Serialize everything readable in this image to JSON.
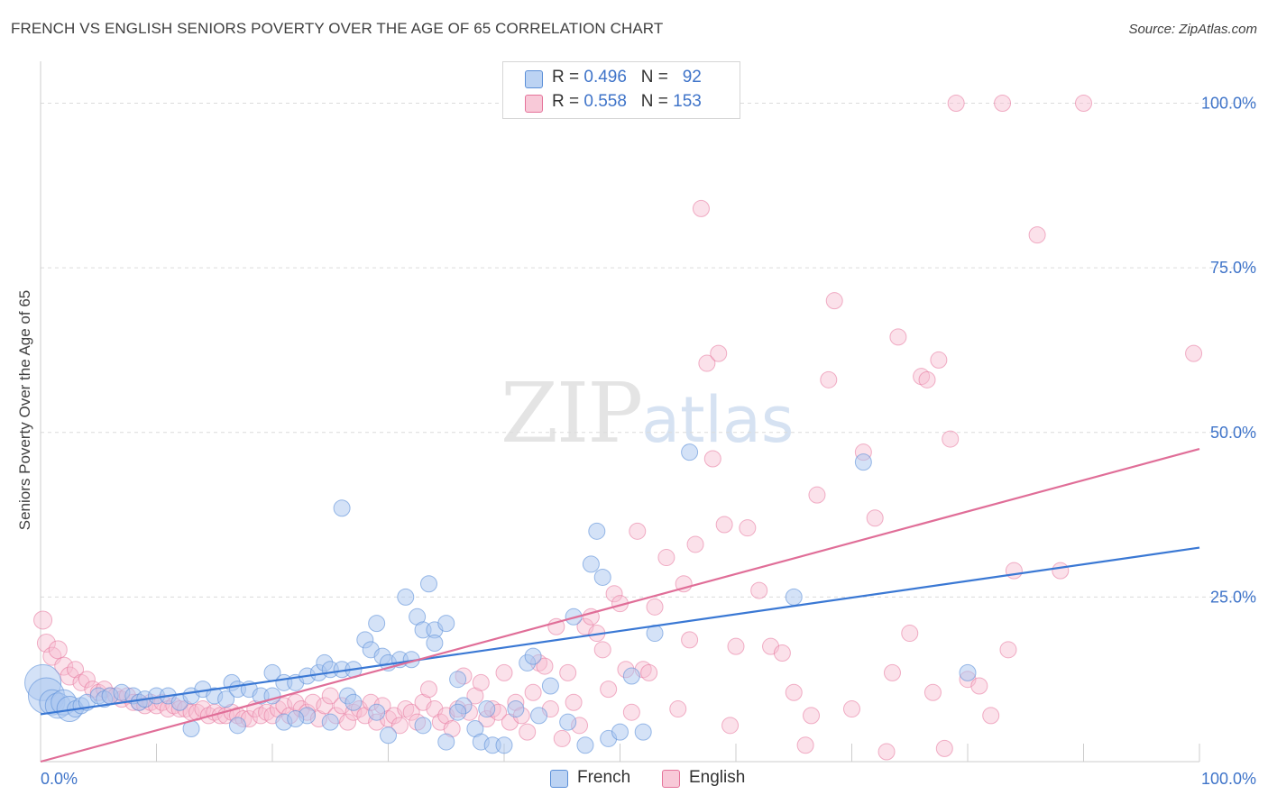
{
  "title": "FRENCH VS ENGLISH SENIORS POVERTY OVER THE AGE OF 65 CORRELATION CHART",
  "source": "Source: ZipAtlas.com",
  "watermark": {
    "zip": "ZIP",
    "atlas": "atlas"
  },
  "legend": {
    "french": {
      "r_label": "R = ",
      "r_value": "0.496",
      "n_label": "N = ",
      "n_value": "92"
    },
    "english": {
      "r_label": "R = ",
      "r_value": "0.558",
      "n_label": "N = ",
      "n_value": "153"
    }
  },
  "colors": {
    "french": "#5b8fd8",
    "french_fill": "#a9c6ef",
    "english": "#e5739a",
    "english_fill": "#f6bdd0",
    "french_line": "#3a78d4",
    "english_line": "#e06e98",
    "tick_label": "#3f74c9",
    "grid": "#dcdcdc"
  },
  "chart_data": {
    "type": "scatter",
    "title": "FRENCH VS ENGLISH SENIORS POVERTY OVER THE AGE OF 65 CORRELATION CHART",
    "ylabel": "Seniors Poverty Over the Age of 65",
    "xlabel": "",
    "xlim": [
      0,
      100
    ],
    "ylim": [
      0,
      105
    ],
    "x_tick_labels": [
      "0.0%",
      "100.0%"
    ],
    "y_ticks": [
      25,
      50,
      75,
      100
    ],
    "y_tick_labels": [
      "25.0%",
      "50.0%",
      "75.0%",
      "100.0%"
    ],
    "grid": true,
    "legend_position": "top-center",
    "series": [
      {
        "name": "French",
        "trend": {
          "x": [
            0,
            100
          ],
          "y": [
            7.2,
            32.5
          ]
        },
        "points": [
          [
            0.2,
            12
          ],
          [
            0.5,
            10
          ],
          [
            1,
            9
          ],
          [
            1.5,
            8.5
          ],
          [
            2,
            9
          ],
          [
            2.5,
            8
          ],
          [
            3,
            8
          ],
          [
            3.5,
            8.5
          ],
          [
            4,
            9
          ],
          [
            5,
            10
          ],
          [
            5.5,
            9.5
          ],
          [
            6,
            10
          ],
          [
            7,
            10.5
          ],
          [
            8,
            10
          ],
          [
            8.5,
            9
          ],
          [
            9,
            9.5
          ],
          [
            10,
            10
          ],
          [
            11,
            10
          ],
          [
            12,
            9
          ],
          [
            13,
            10
          ],
          [
            14,
            11
          ],
          [
            15,
            10
          ],
          [
            16,
            9.5
          ],
          [
            16.5,
            12
          ],
          [
            17,
            11
          ],
          [
            18,
            11
          ],
          [
            19,
            10
          ],
          [
            20,
            10
          ],
          [
            20,
            13.5
          ],
          [
            21,
            12
          ],
          [
            22,
            12
          ],
          [
            23,
            13
          ],
          [
            24,
            13.5
          ],
          [
            24.5,
            15
          ],
          [
            25,
            14
          ],
          [
            26,
            14
          ],
          [
            26.5,
            10
          ],
          [
            27,
            9
          ],
          [
            27,
            14
          ],
          [
            28,
            18.5
          ],
          [
            28.5,
            17
          ],
          [
            29,
            21
          ],
          [
            29.5,
            16
          ],
          [
            30,
            15
          ],
          [
            31,
            15.5
          ],
          [
            31.5,
            25
          ],
          [
            32,
            15.5
          ],
          [
            32.5,
            22
          ],
          [
            33,
            20
          ],
          [
            33.5,
            27
          ],
          [
            34,
            20
          ],
          [
            34,
            18
          ],
          [
            35,
            21
          ],
          [
            36,
            12.5
          ],
          [
            36.5,
            8.5
          ],
          [
            37.5,
            5
          ],
          [
            38,
            3
          ],
          [
            38.5,
            8
          ],
          [
            39,
            2.5
          ],
          [
            40,
            2.5
          ],
          [
            41,
            8
          ],
          [
            42,
            15
          ],
          [
            42.5,
            16
          ],
          [
            43,
            7
          ],
          [
            44,
            11.5
          ],
          [
            45.5,
            6
          ],
          [
            46,
            22
          ],
          [
            47,
            2.5
          ],
          [
            47.5,
            30
          ],
          [
            48,
            35
          ],
          [
            48.5,
            28
          ],
          [
            49,
            3.5
          ],
          [
            50,
            4.5
          ],
          [
            51,
            13
          ],
          [
            52,
            4.5
          ],
          [
            53,
            19.5
          ],
          [
            56,
            47
          ],
          [
            65,
            25
          ],
          [
            71,
            45.5
          ],
          [
            80,
            13.5
          ],
          [
            26,
            38.5
          ],
          [
            13,
            5
          ],
          [
            17,
            5.5
          ],
          [
            21,
            6
          ],
          [
            23,
            7
          ],
          [
            30,
            4
          ],
          [
            33,
            5.5
          ],
          [
            35,
            3
          ],
          [
            36,
            7.5
          ],
          [
            22,
            6.5
          ],
          [
            25,
            6
          ],
          [
            29,
            7.5
          ]
        ]
      },
      {
        "name": "English",
        "trend": {
          "x": [
            0,
            100
          ],
          "y": [
            0,
            47.5
          ]
        },
        "points": [
          [
            0.2,
            21.5
          ],
          [
            0.5,
            18
          ],
          [
            1,
            16
          ],
          [
            1.5,
            17
          ],
          [
            2,
            14.5
          ],
          [
            2.5,
            13
          ],
          [
            3,
            14
          ],
          [
            3.5,
            12
          ],
          [
            4,
            12.5
          ],
          [
            4.5,
            11
          ],
          [
            5,
            10.5
          ],
          [
            5.5,
            11
          ],
          [
            6,
            10
          ],
          [
            6.5,
            10
          ],
          [
            7,
            9.5
          ],
          [
            7.5,
            10
          ],
          [
            8,
            9
          ],
          [
            8.5,
            9
          ],
          [
            9,
            8.5
          ],
          [
            9.5,
            9
          ],
          [
            10,
            8.5
          ],
          [
            10.5,
            9
          ],
          [
            11,
            8
          ],
          [
            11.5,
            8.5
          ],
          [
            12,
            8
          ],
          [
            12.5,
            8
          ],
          [
            13,
            7.5
          ],
          [
            13.5,
            7.5
          ],
          [
            14,
            8
          ],
          [
            14.5,
            7
          ],
          [
            15,
            7.5
          ],
          [
            15.5,
            7
          ],
          [
            16,
            7
          ],
          [
            16.5,
            7.5
          ],
          [
            17,
            7
          ],
          [
            17.5,
            6.5
          ],
          [
            18,
            6.5
          ],
          [
            18.5,
            8
          ],
          [
            19,
            7
          ],
          [
            19.5,
            7.5
          ],
          [
            20,
            7
          ],
          [
            20.5,
            8
          ],
          [
            21,
            8.5
          ],
          [
            21.5,
            7
          ],
          [
            22,
            9
          ],
          [
            22.5,
            8
          ],
          [
            23,
            7.5
          ],
          [
            23.5,
            9
          ],
          [
            24,
            6.5
          ],
          [
            24.5,
            8.5
          ],
          [
            25,
            10
          ],
          [
            25.5,
            7
          ],
          [
            26,
            8.5
          ],
          [
            26.5,
            6
          ],
          [
            27,
            7.5
          ],
          [
            27.5,
            8
          ],
          [
            28,
            7
          ],
          [
            28.5,
            9
          ],
          [
            29,
            6
          ],
          [
            29.5,
            8.5
          ],
          [
            30,
            6.5
          ],
          [
            30.5,
            7
          ],
          [
            31,
            5.5
          ],
          [
            31.5,
            8
          ],
          [
            32,
            7.5
          ],
          [
            32.5,
            6
          ],
          [
            33,
            9
          ],
          [
            33.5,
            11
          ],
          [
            34,
            8
          ],
          [
            34.5,
            6
          ],
          [
            35,
            7
          ],
          [
            35.5,
            5
          ],
          [
            36,
            8
          ],
          [
            36.5,
            13
          ],
          [
            37,
            7.5
          ],
          [
            37.5,
            10
          ],
          [
            38,
            12
          ],
          [
            38.5,
            6.5
          ],
          [
            39,
            8
          ],
          [
            39.5,
            7.5
          ],
          [
            40,
            13.5
          ],
          [
            40.5,
            6
          ],
          [
            41,
            9
          ],
          [
            41.5,
            7
          ],
          [
            42,
            4.5
          ],
          [
            42.5,
            10.5
          ],
          [
            43,
            15
          ],
          [
            43.5,
            14.5
          ],
          [
            44,
            8
          ],
          [
            44.5,
            20.5
          ],
          [
            45,
            3.5
          ],
          [
            45.5,
            13.5
          ],
          [
            46,
            9
          ],
          [
            46.5,
            5.5
          ],
          [
            47,
            20.5
          ],
          [
            47.5,
            22
          ],
          [
            48,
            19.5
          ],
          [
            48.5,
            17
          ],
          [
            49,
            11
          ],
          [
            49.5,
            25.5
          ],
          [
            50,
            24
          ],
          [
            50.5,
            14
          ],
          [
            51,
            7.5
          ],
          [
            51.5,
            35
          ],
          [
            52,
            14
          ],
          [
            52.5,
            13.5
          ],
          [
            53,
            23.5
          ],
          [
            54,
            31
          ],
          [
            55,
            8
          ],
          [
            55.5,
            27
          ],
          [
            56,
            18.5
          ],
          [
            56.5,
            33
          ],
          [
            57,
            84
          ],
          [
            57.5,
            60.5
          ],
          [
            58,
            46
          ],
          [
            58.5,
            62
          ],
          [
            59,
            36
          ],
          [
            59.5,
            5.5
          ],
          [
            60,
            17.5
          ],
          [
            61,
            35.5
          ],
          [
            62,
            26
          ],
          [
            63,
            17.5
          ],
          [
            64,
            16.5
          ],
          [
            65,
            10.5
          ],
          [
            66,
            2.5
          ],
          [
            66.5,
            7
          ],
          [
            67,
            40.5
          ],
          [
            68,
            58
          ],
          [
            68.5,
            70
          ],
          [
            70,
            8
          ],
          [
            71,
            47
          ],
          [
            72,
            37
          ],
          [
            73,
            1.5
          ],
          [
            73.5,
            13.5
          ],
          [
            74,
            64.5
          ],
          [
            75,
            19.5
          ],
          [
            76,
            58.5
          ],
          [
            76.5,
            58
          ],
          [
            77,
            10.5
          ],
          [
            77.5,
            61
          ],
          [
            78,
            2
          ],
          [
            78.5,
            49
          ],
          [
            79,
            100
          ],
          [
            80,
            12.5
          ],
          [
            81,
            11.5
          ],
          [
            82,
            7
          ],
          [
            83,
            100
          ],
          [
            83.5,
            17
          ],
          [
            84,
            29
          ],
          [
            86,
            80
          ],
          [
            88,
            29
          ],
          [
            90,
            100
          ],
          [
            99.5,
            62
          ]
        ]
      }
    ]
  }
}
